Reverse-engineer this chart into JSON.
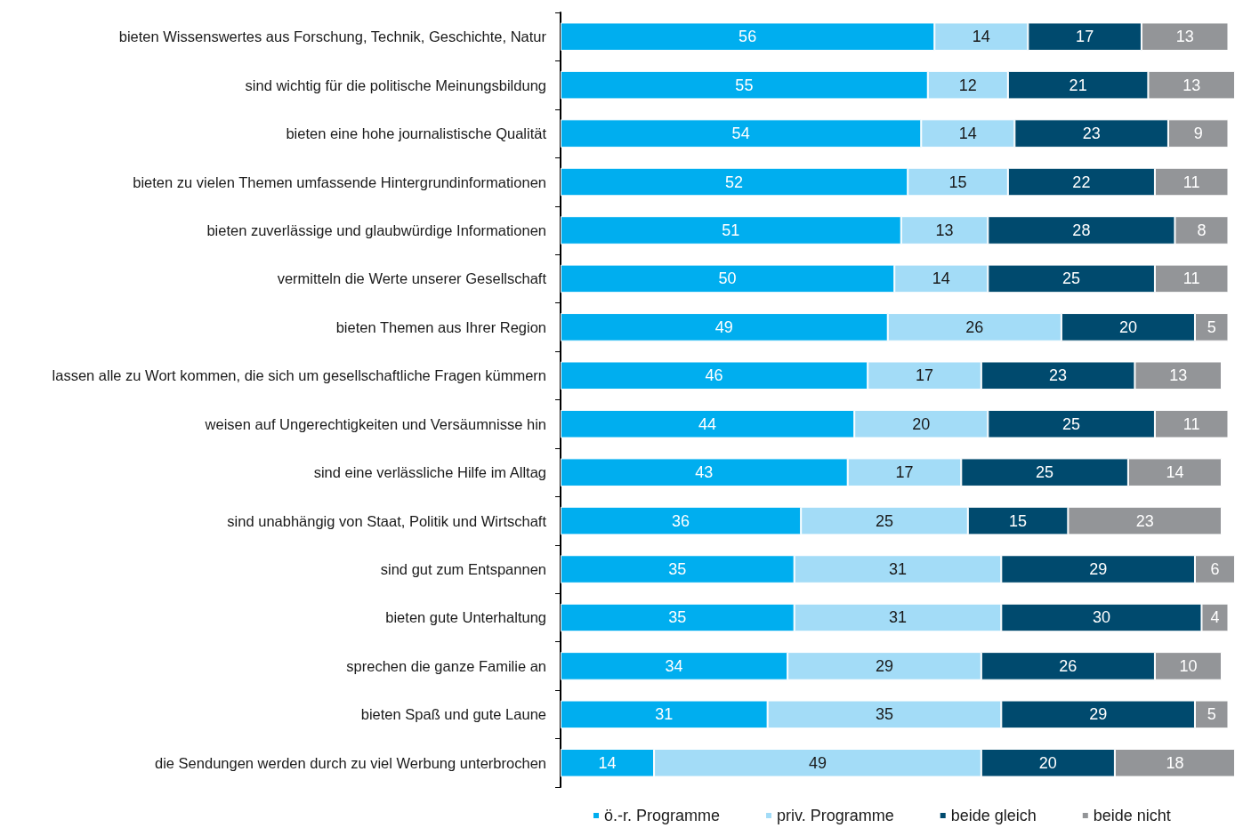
{
  "chart_data": {
    "type": "bar",
    "orientation": "horizontal",
    "stacked": true,
    "data_labels": true,
    "legend": "bottom",
    "categories": [
      "bieten Wissenswertes aus Forschung, Technik, Geschichte, Natur",
      "sind wichtig für die politische Meinungsbildung",
      "bieten eine hohe journalistische Qualität",
      "bieten zu vielen Themen umfassende Hintergrundinformationen",
      "bieten zuverlässige und glaubwürdige Informationen",
      "vermitteln die Werte unserer Gesellschaft",
      "bieten Themen aus Ihrer Region",
      "lassen alle zu Wort kommen, die sich um gesellschaftliche Fragen kümmern",
      "weisen auf Ungerechtigkeiten und Versäumnisse hin",
      "sind eine verlässliche Hilfe im Alltag",
      "sind unabhängig von Staat, Politik und Wirtschaft",
      "sind gut zum Entspannen",
      "bieten gute Unterhaltung",
      "sprechen die ganze Familie an",
      "bieten Spaß und gute Laune",
      "die Sendungen werden durch zu viel Werbung unterbrochen"
    ],
    "series": [
      {
        "name": "ö.-r. Programme",
        "color": "#00aeef",
        "values": [
          56,
          55,
          54,
          52,
          51,
          50,
          49,
          46,
          44,
          43,
          36,
          35,
          35,
          34,
          31,
          14
        ]
      },
      {
        "name": "priv. Programme",
        "color": "#a3dcf7",
        "values": [
          14,
          12,
          14,
          15,
          13,
          14,
          26,
          17,
          20,
          17,
          25,
          31,
          31,
          29,
          35,
          49
        ]
      },
      {
        "name": "beide gleich",
        "color": "#004a6e",
        "values": [
          17,
          21,
          23,
          22,
          28,
          25,
          20,
          23,
          25,
          25,
          15,
          29,
          30,
          26,
          29,
          20
        ]
      },
      {
        "name": "beide nicht",
        "color": "#939598",
        "values": [
          13,
          13,
          9,
          11,
          8,
          11,
          5,
          13,
          11,
          14,
          23,
          6,
          4,
          10,
          5,
          18
        ]
      }
    ]
  }
}
